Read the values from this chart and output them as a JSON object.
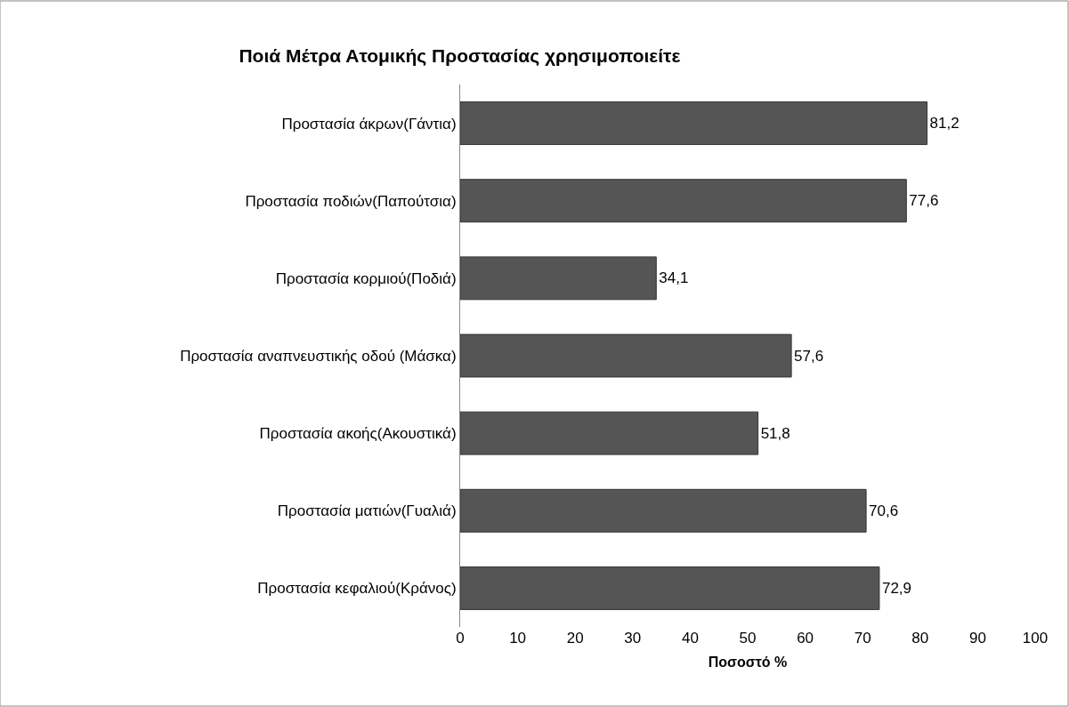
{
  "chart_data": {
    "type": "bar",
    "orientation": "horizontal",
    "title": "Ποιά Μέτρα Ατομικής Προστασίας χρησιμοποιείτε",
    "xlabel": "Ποσοστό %",
    "categories": [
      "Προστασία άκρων(Γάντια)",
      "Προστασία ποδιών(Παπούτσια)",
      "Προστασία κορμιού(Ποδιά)",
      "Προστασία αναπνευστικής οδού (Μάσκα)",
      "Προστασία ακοής(Ακουστικά)",
      "Προστασία ματιών(Γυαλιά)",
      "Προστασία κεφαλιού(Κράνος)"
    ],
    "values": [
      81.2,
      77.6,
      34.1,
      57.6,
      51.8,
      70.6,
      72.9
    ],
    "value_labels": [
      "81,2",
      "77,6",
      "34,1",
      "57,6",
      "51,8",
      "70,6",
      "72,9"
    ],
    "color": "#555555",
    "xlim": [
      0,
      100
    ],
    "xticks": [
      0,
      10,
      20,
      30,
      40,
      50,
      60,
      70,
      80,
      90,
      100
    ],
    "legend": false
  }
}
